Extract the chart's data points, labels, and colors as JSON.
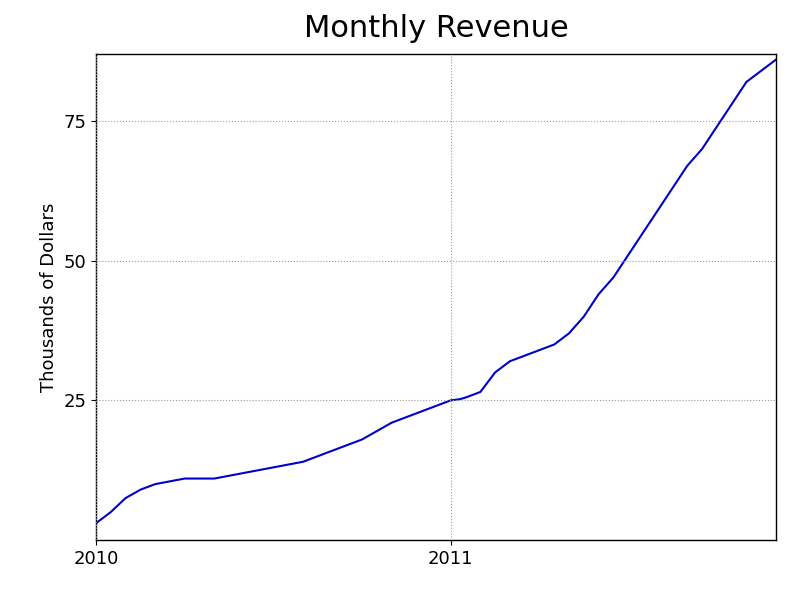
{
  "title": "Monthly Revenue",
  "ylabel": "Thousands of Dollars",
  "line_color": "#0000cc",
  "background_color": "#ffffff",
  "title_fontsize": 22,
  "label_fontsize": 13,
  "tick_fontsize": 13,
  "x_values": [
    0,
    0.5,
    1,
    1.5,
    2,
    2.5,
    3,
    3.5,
    4,
    4.5,
    5,
    5.5,
    6,
    6.5,
    7,
    7.5,
    8,
    8.5,
    9,
    9.5,
    10,
    10.5,
    11,
    11.5,
    12,
    12.3,
    12.5,
    13,
    13.5,
    14,
    14.5,
    15,
    15.5,
    16,
    16.5,
    17,
    17.5,
    18,
    18.5,
    19,
    19.5,
    20,
    20.5,
    21,
    21.5,
    22,
    22.5,
    23
  ],
  "y_values": [
    3,
    5,
    7.5,
    9,
    10,
    10.5,
    11,
    11,
    11,
    11.5,
    12,
    12.5,
    13,
    13.5,
    14,
    15,
    16,
    17,
    18,
    19.5,
    21,
    22,
    23,
    24,
    25,
    25.2,
    25.5,
    26.5,
    30,
    32,
    33,
    34,
    35,
    37,
    40,
    44,
    47,
    51,
    55,
    59,
    63,
    67,
    70,
    74,
    78,
    82,
    84,
    86
  ],
  "xlim": [
    0,
    23
  ],
  "ylim": [
    0,
    87
  ],
  "yticks": [
    25,
    50,
    75
  ],
  "xtick_positions": [
    0,
    12
  ],
  "xtick_labels": [
    "2010",
    "2011"
  ],
  "grid_linestyle": ":",
  "grid_color": "#999999",
  "grid_linewidth": 0.8,
  "line_linewidth": 1.5
}
